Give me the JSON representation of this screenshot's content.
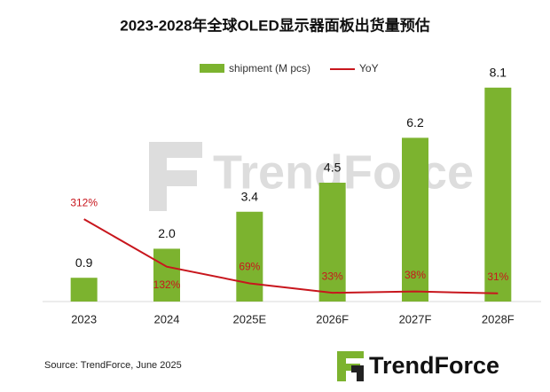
{
  "chart_data": {
    "type": "bar_line",
    "title": "2023-2028年全球OLED显示器面板出货量预估",
    "categories": [
      "2023",
      "2024",
      "2025E",
      "2026F",
      "2027F",
      "2028F"
    ],
    "series": [
      {
        "name": "shipment (M pcs)",
        "type": "bar",
        "color": "#7cb32f",
        "values": [
          0.9,
          2.0,
          3.4,
          4.5,
          6.2,
          8.1
        ],
        "value_labels": [
          "0.9",
          "2.0",
          "3.4",
          "4.5",
          "6.2",
          "8.1"
        ]
      },
      {
        "name": "YoY",
        "type": "line",
        "axis": "y2",
        "color": "#c8161d",
        "values": [
          312,
          132,
          69,
          33,
          38,
          31
        ],
        "value_labels": [
          "312%",
          "132%",
          "69%",
          "33%",
          "38%",
          "31%"
        ]
      }
    ],
    "ylim": [
      0,
      9
    ],
    "y2lim": [
      0,
      900
    ],
    "source": "Source: TrendForce, June 2025",
    "watermark": "TrendForce",
    "logo": "TrendForce"
  }
}
